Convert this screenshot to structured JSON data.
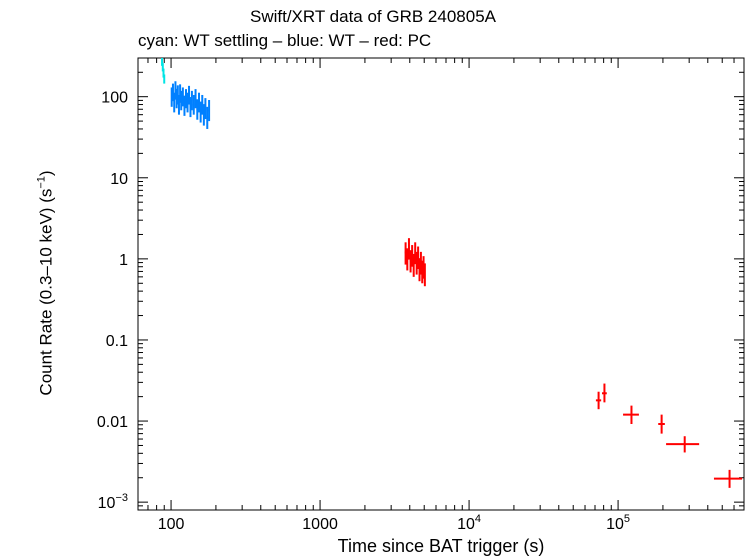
{
  "chart_data": {
    "type": "scatter",
    "title": "Swift/XRT data of GRB 240805A",
    "subtitle": "cyan: WT settling – blue: WT – red: PC",
    "xlabel": "Time since BAT trigger (s)",
    "ylabel_main": "Count Rate (0.3–10 keV) (s",
    "ylabel_exp": "−1",
    "ylabel_close": ")",
    "x_scale": "log",
    "y_scale": "log",
    "xlim": [
      60,
      700000
    ],
    "ylim": [
      0.0008,
      300
    ],
    "grid": false,
    "x_ticks": [
      {
        "value": 100,
        "label": "100",
        "exp": ""
      },
      {
        "value": 1000,
        "label": "1000",
        "exp": ""
      },
      {
        "value": 10000,
        "label": "10",
        "exp": "4"
      },
      {
        "value": 100000,
        "label": "10",
        "exp": "5"
      }
    ],
    "y_ticks": [
      {
        "value": 100,
        "label": "100",
        "exp": ""
      },
      {
        "value": 10,
        "label": "10",
        "exp": ""
      },
      {
        "value": 1,
        "label": "1",
        "exp": ""
      },
      {
        "value": 0.1,
        "label": "0.1",
        "exp": ""
      },
      {
        "value": 0.01,
        "label": "0.01",
        "exp": ""
      },
      {
        "value": 0.001,
        "label": "10",
        "exp": "−3"
      }
    ],
    "series": [
      {
        "name": "WT settling",
        "color": "#00e5e5",
        "points": [
          {
            "x": 87,
            "y": 270,
            "xerr": 0.5,
            "ylo": 240,
            "yhi": 300
          },
          {
            "x": 88,
            "y": 230,
            "xerr": 0.5,
            "ylo": 205,
            "yhi": 260
          },
          {
            "x": 89,
            "y": 195,
            "xerr": 0.5,
            "ylo": 172,
            "yhi": 222
          },
          {
            "x": 90,
            "y": 165,
            "xerr": 0.5,
            "ylo": 145,
            "yhi": 188
          }
        ]
      },
      {
        "name": "WT",
        "color": "#0080ff",
        "points": [
          {
            "x": 101,
            "y": 100,
            "xerr": 1,
            "ylo": 75,
            "yhi": 130
          },
          {
            "x": 103,
            "y": 115,
            "xerr": 1,
            "ylo": 88,
            "yhi": 145
          },
          {
            "x": 105,
            "y": 85,
            "xerr": 1,
            "ylo": 64,
            "yhi": 112
          },
          {
            "x": 107,
            "y": 120,
            "xerr": 1,
            "ylo": 92,
            "yhi": 155
          },
          {
            "x": 109,
            "y": 95,
            "xerr": 1,
            "ylo": 72,
            "yhi": 125
          },
          {
            "x": 111,
            "y": 105,
            "xerr": 1,
            "ylo": 80,
            "yhi": 138
          },
          {
            "x": 113,
            "y": 80,
            "xerr": 1,
            "ylo": 60,
            "yhi": 105
          },
          {
            "x": 115,
            "y": 110,
            "xerr": 1,
            "ylo": 84,
            "yhi": 142
          },
          {
            "x": 117,
            "y": 90,
            "xerr": 1,
            "ylo": 68,
            "yhi": 118
          },
          {
            "x": 120,
            "y": 100,
            "xerr": 1.5,
            "ylo": 76,
            "yhi": 130
          },
          {
            "x": 123,
            "y": 78,
            "xerr": 1.5,
            "ylo": 58,
            "yhi": 103
          },
          {
            "x": 126,
            "y": 95,
            "xerr": 1.5,
            "ylo": 72,
            "yhi": 124
          },
          {
            "x": 129,
            "y": 85,
            "xerr": 1.5,
            "ylo": 64,
            "yhi": 112
          },
          {
            "x": 132,
            "y": 105,
            "xerr": 1.5,
            "ylo": 80,
            "yhi": 136
          },
          {
            "x": 135,
            "y": 75,
            "xerr": 1.5,
            "ylo": 56,
            "yhi": 99
          },
          {
            "x": 138,
            "y": 90,
            "xerr": 1.5,
            "ylo": 68,
            "yhi": 118
          },
          {
            "x": 142,
            "y": 80,
            "xerr": 2,
            "ylo": 60,
            "yhi": 105
          },
          {
            "x": 146,
            "y": 95,
            "xerr": 2,
            "ylo": 72,
            "yhi": 124
          },
          {
            "x": 150,
            "y": 70,
            "xerr": 2,
            "ylo": 52,
            "yhi": 93
          },
          {
            "x": 154,
            "y": 85,
            "xerr": 2,
            "ylo": 64,
            "yhi": 112
          },
          {
            "x": 158,
            "y": 65,
            "xerr": 2,
            "ylo": 48,
            "yhi": 87
          },
          {
            "x": 162,
            "y": 80,
            "xerr": 2,
            "ylo": 60,
            "yhi": 105
          },
          {
            "x": 166,
            "y": 60,
            "xerr": 2,
            "ylo": 44,
            "yhi": 81
          },
          {
            "x": 170,
            "y": 72,
            "xerr": 2,
            "ylo": 53,
            "yhi": 96
          },
          {
            "x": 175,
            "y": 55,
            "xerr": 2.5,
            "ylo": 40,
            "yhi": 75
          },
          {
            "x": 180,
            "y": 68,
            "xerr": 2.5,
            "ylo": 50,
            "yhi": 91
          }
        ]
      },
      {
        "name": "PC",
        "color": "#ff0000",
        "points": [
          {
            "x": 3750,
            "y": 1.2,
            "xerr": 50,
            "ylo": 0.85,
            "yhi": 1.6
          },
          {
            "x": 3850,
            "y": 1.0,
            "xerr": 50,
            "ylo": 0.72,
            "yhi": 1.35
          },
          {
            "x": 3950,
            "y": 1.35,
            "xerr": 50,
            "ylo": 0.98,
            "yhi": 1.8
          },
          {
            "x": 4050,
            "y": 0.95,
            "xerr": 50,
            "ylo": 0.68,
            "yhi": 1.28
          },
          {
            "x": 4150,
            "y": 1.1,
            "xerr": 50,
            "ylo": 0.8,
            "yhi": 1.48
          },
          {
            "x": 4250,
            "y": 0.85,
            "xerr": 50,
            "ylo": 0.6,
            "yhi": 1.15
          },
          {
            "x": 4350,
            "y": 1.2,
            "xerr": 50,
            "ylo": 0.86,
            "yhi": 1.6
          },
          {
            "x": 4450,
            "y": 0.9,
            "xerr": 50,
            "ylo": 0.64,
            "yhi": 1.22
          },
          {
            "x": 4550,
            "y": 1.05,
            "xerr": 50,
            "ylo": 0.75,
            "yhi": 1.42
          },
          {
            "x": 4650,
            "y": 0.75,
            "xerr": 50,
            "ylo": 0.53,
            "yhi": 1.02
          },
          {
            "x": 4750,
            "y": 0.9,
            "xerr": 50,
            "ylo": 0.64,
            "yhi": 1.22
          },
          {
            "x": 4850,
            "y": 0.7,
            "xerr": 50,
            "ylo": 0.5,
            "yhi": 0.95
          },
          {
            "x": 4950,
            "y": 0.8,
            "xerr": 50,
            "ylo": 0.57,
            "yhi": 1.08
          },
          {
            "x": 5050,
            "y": 0.65,
            "xerr": 50,
            "ylo": 0.46,
            "yhi": 0.88
          },
          {
            "x": 74000,
            "y": 0.018,
            "xerr": 3000,
            "ylo": 0.014,
            "yhi": 0.023
          },
          {
            "x": 81000,
            "y": 0.022,
            "xerr": 3000,
            "ylo": 0.017,
            "yhi": 0.029
          },
          {
            "x": 123000,
            "y": 0.012,
            "xerr": 15000,
            "ylo": 0.0092,
            "yhi": 0.0155
          },
          {
            "x": 196000,
            "y": 0.0092,
            "xerr": 10000,
            "ylo": 0.007,
            "yhi": 0.012
          },
          {
            "x": 280000,
            "y": 0.0052,
            "xerr": 70000,
            "ylo": 0.0041,
            "yhi": 0.0065
          },
          {
            "x": 560000,
            "y": 0.00195,
            "xerr": 120000,
            "ylo": 0.0015,
            "yhi": 0.0025
          }
        ]
      }
    ]
  }
}
